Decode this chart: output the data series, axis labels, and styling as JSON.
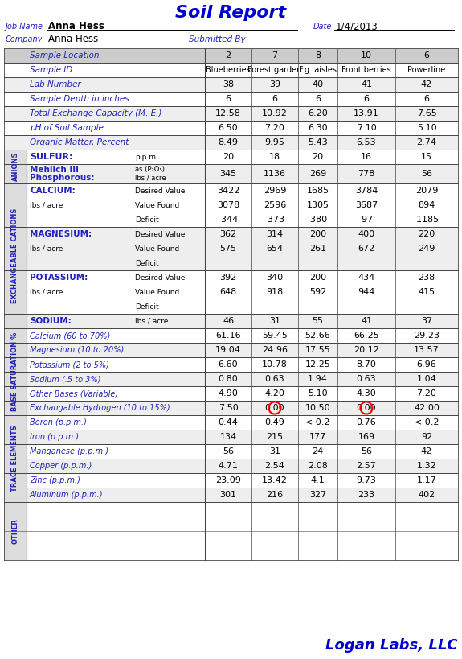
{
  "title": "Soil Report",
  "job_name": "Anna Hess",
  "date": "1/4/2013",
  "company": "Anna Hess",
  "submitted_by": "Submitted By",
  "sample_locations": [
    "2",
    "7",
    "8",
    "10",
    "6"
  ],
  "sample_ids": [
    "Blueberries",
    "Forest garden",
    "F.g. aisles",
    "Front berries",
    "Powerline"
  ],
  "lab_numbers": [
    "38",
    "39",
    "40",
    "41",
    "42"
  ],
  "sample_depths": [
    "6",
    "6",
    "6",
    "6",
    "6"
  ],
  "total_exchange": [
    "12.58",
    "10.92",
    "6.20",
    "13.91",
    "7.65"
  ],
  "ph": [
    "6.50",
    "7.20",
    "6.30",
    "7.10",
    "5.10"
  ],
  "organic_matter": [
    "8.49",
    "9.95",
    "5.43",
    "6.53",
    "2.74"
  ],
  "sulfur": [
    "20",
    "18",
    "20",
    "16",
    "15"
  ],
  "phosphorous": [
    "345",
    "1136",
    "269",
    "778",
    "56"
  ],
  "calcium_desired": [
    "3422",
    "2969",
    "1685",
    "3784",
    "2079"
  ],
  "calcium_found": [
    "3078",
    "2596",
    "1305",
    "3687",
    "894"
  ],
  "calcium_deficit": [
    "-344",
    "-373",
    "-380",
    "-97",
    "-1185"
  ],
  "magnesium_desired": [
    "362",
    "314",
    "200",
    "400",
    "220"
  ],
  "magnesium_found": [
    "575",
    "654",
    "261",
    "672",
    "249"
  ],
  "magnesium_deficit": [
    "",
    "",
    "",
    "",
    ""
  ],
  "potassium_desired": [
    "392",
    "340",
    "200",
    "434",
    "238"
  ],
  "potassium_found": [
    "648",
    "918",
    "592",
    "944",
    "415"
  ],
  "potassium_deficit": [
    "",
    "",
    "",
    "",
    ""
  ],
  "sodium": [
    "46",
    "31",
    "55",
    "41",
    "37"
  ],
  "base_calcium": [
    "61.16",
    "59.45",
    "52.66",
    "66.25",
    "29.23"
  ],
  "base_magnesium": [
    "19.04",
    "24.96",
    "17.55",
    "20.12",
    "13.57"
  ],
  "base_potassium": [
    "6.60",
    "10.78",
    "12.25",
    "8.70",
    "6.96"
  ],
  "base_sodium": [
    "0.80",
    "0.63",
    "1.94",
    "0.63",
    "1.04"
  ],
  "base_other": [
    "4.90",
    "4.20",
    "5.10",
    "4.30",
    "7.20"
  ],
  "base_hydrogen": [
    "7.50",
    "0.00",
    "10.50",
    "0.00",
    "42.00"
  ],
  "base_hydrogen_circle_cols": [
    1,
    3
  ],
  "boron": [
    "0.44",
    "0.49",
    "< 0.2",
    "0.76",
    "< 0.2"
  ],
  "iron": [
    "134",
    "215",
    "177",
    "169",
    "92"
  ],
  "manganese": [
    "56",
    "31",
    "24",
    "56",
    "42"
  ],
  "copper": [
    "4.71",
    "2.54",
    "2.08",
    "2.57",
    "1.32"
  ],
  "zinc": [
    "23.09",
    "13.42",
    "4.1",
    "9.73",
    "1.17"
  ],
  "aluminum": [
    "301",
    "216",
    "327",
    "233",
    "402"
  ],
  "blue": "#2222BB",
  "header_bg": "#CCCCCC",
  "alt_bg": "#EEEEEE",
  "white_bg": "#FFFFFF",
  "border_color": "#444444",
  "section_bg": "#DDDDDD",
  "footer_blue": "#0000CC"
}
